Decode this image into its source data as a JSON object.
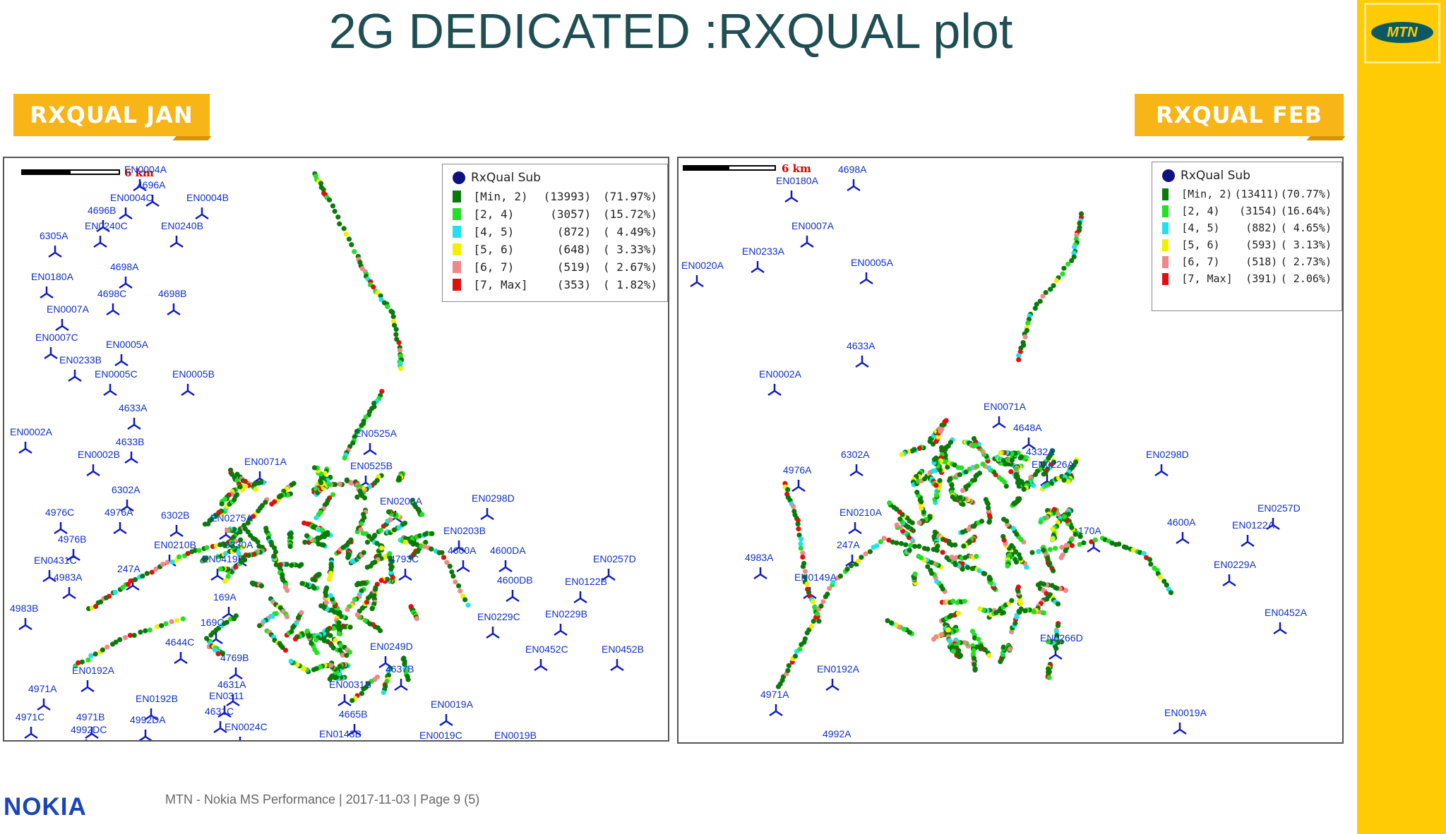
{
  "title": "2G DEDICATED :RXQUAL plot",
  "brand": {
    "logo_text": "MTN",
    "nokia_text": "NOKIA",
    "accent": "#ffcb05",
    "tag_color": "#f7b518"
  },
  "footer": {
    "text": "MTN - Nokia MS Performance  |  2017-11-03  |  Page 9 (5)"
  },
  "maps": {
    "jan": {
      "tag": "RXQUAL JAN",
      "scale": "6 km",
      "legend": {
        "title": "RxQual Sub",
        "rows": [
          {
            "range": "[Min, 2)",
            "count": "(13993)",
            "pct": "(71.97%)",
            "color": "#0a7a0a"
          },
          {
            "range": "[2, 4)",
            "count": "(3057)",
            "pct": "(15.72%)",
            "color": "#22e022"
          },
          {
            "range": "[4, 5)",
            "count": "(872)",
            "pct": "( 4.49%)",
            "color": "#22e0f0"
          },
          {
            "range": "[5, 6)",
            "count": "(648)",
            "pct": "( 3.33%)",
            "color": "#f0f000"
          },
          {
            "range": "[6, 7)",
            "count": "(519)",
            "pct": "( 2.67%)",
            "color": "#f08888"
          },
          {
            "range": "[7, Max]",
            "count": "(353)",
            "pct": "( 1.82%)",
            "color": "#e01010"
          }
        ]
      },
      "sites": [
        "EN0004A",
        "4696A",
        "EN0004C",
        "EN0004B",
        "4696B",
        "EN0240C",
        "EN0240B",
        "6305A",
        "4698A",
        "EN0180A",
        "4698C",
        "4698B",
        "EN0007A",
        "EN0007C",
        "EN0005A",
        "EN0233B",
        "EN0005C",
        "EN0005B",
        "4633A",
        "EN0002A",
        "4633B",
        "EN0002B",
        "EN0525A",
        "EN0071A",
        "EN0525B",
        "6302A",
        "4976C",
        "4976A",
        "6302B",
        "EN0275A",
        "EN0203A",
        "EN0298D",
        "EN0203B",
        "4976B",
        "EN0210B",
        "6330A",
        "EN0419F",
        "4793C",
        "4600A",
        "4600DA",
        "EN0431C",
        "4983A",
        "247A",
        "EN0257D",
        "4600DB",
        "EN0122B",
        "4983B",
        "169A",
        "EN0229C",
        "EN0229B",
        "169C",
        "4644C",
        "EN0249D",
        "4637B",
        "EN0452C",
        "EN0452B",
        "4971A",
        "EN0192B",
        "4631A",
        "EN0311",
        "4631C",
        "4665B",
        "EN0019A",
        "4971C",
        "4971B",
        "4992DA",
        "4992DC",
        "EN0024C",
        "EN0143B",
        "EN0019C",
        "EN0019B",
        "EN0192A",
        "4769B",
        "EN0031B"
      ]
    },
    "feb": {
      "tag": "RXQUAL FEB",
      "scale": "6 km",
      "legend": {
        "title": "RxQual Sub",
        "rows": [
          {
            "range": "[Min, 2)",
            "count": "(13411)",
            "pct": "(70.77%)",
            "color": "#0a7a0a"
          },
          {
            "range": "[2, 4)",
            "count": "(3154)",
            "pct": "(16.64%)",
            "color": "#22e022"
          },
          {
            "range": "[4, 5)",
            "count": "(882)",
            "pct": "( 4.65%)",
            "color": "#22e0f0"
          },
          {
            "range": "[5, 6)",
            "count": "(593)",
            "pct": "( 3.13%)",
            "color": "#f0f000"
          },
          {
            "range": "[6, 7)",
            "count": "(518)",
            "pct": "( 2.73%)",
            "color": "#f08888"
          },
          {
            "range": "[7, Max]",
            "count": "(391)",
            "pct": "( 2.06%)",
            "color": "#e01010"
          }
        ]
      },
      "sites": [
        "4698A",
        "EN0180A",
        "EN0007A",
        "EN0233A",
        "EN0020A",
        "EN0005A",
        "4633A",
        "EN0002A",
        "EN0071A",
        "4648A",
        "6302A",
        "EN0298D",
        "4976A",
        "EN0210A",
        "EN0257D",
        "4600A",
        "EN0122A",
        "4983A",
        "247A",
        "170A",
        "EN0229A",
        "EN0149A",
        "EN0452A",
        "EN0192A",
        "4971A",
        "EN0266D",
        "EN0019A",
        "4992A",
        "EN0226A",
        "4332A"
      ]
    }
  }
}
